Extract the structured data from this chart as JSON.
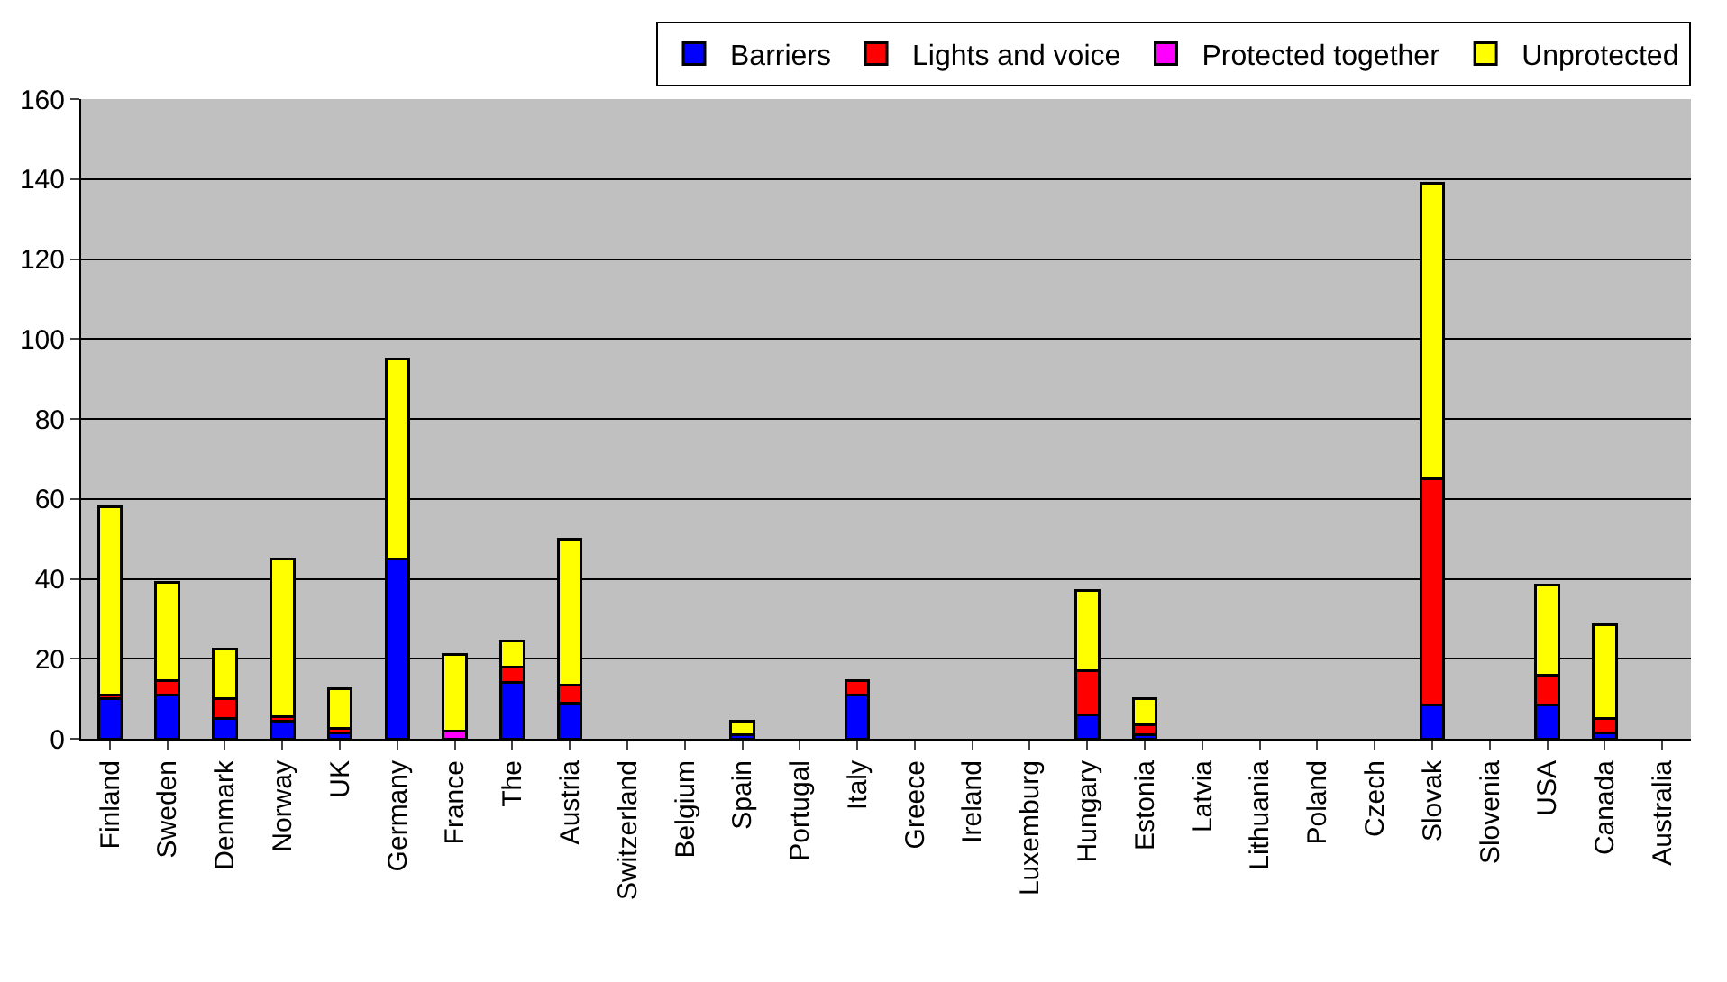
{
  "chart_data": {
    "type": "bar",
    "stacked": true,
    "categories": [
      "Finland",
      "Sweden",
      "Denmark",
      "Norway",
      "UK",
      "Germany",
      "France",
      "The",
      "Austria",
      "Switzerland",
      "Belgium",
      "Spain",
      "Portugal",
      "Italy",
      "Greece",
      "Ireland",
      "Luxemburg",
      "Hungary",
      "Estonia",
      "Latvia",
      "Lithuania",
      "Poland",
      "Czech",
      "Slovak",
      "Slovenia",
      "USA",
      "Canada",
      "Australia"
    ],
    "series": [
      {
        "name": "Barriers",
        "color": "#0000ff",
        "values": [
          10,
          11,
          5,
          4.5,
          1.5,
          45,
          null,
          14,
          9,
          null,
          null,
          1,
          null,
          11,
          null,
          null,
          null,
          6,
          1,
          null,
          null,
          null,
          null,
          8.5,
          null,
          8.5,
          1.5,
          null
        ]
      },
      {
        "name": "Lights and voice",
        "color": "#ff0000",
        "values": [
          1,
          3.5,
          5,
          1,
          1,
          null,
          null,
          4,
          4.5,
          null,
          null,
          null,
          null,
          3.5,
          null,
          null,
          null,
          11,
          2.5,
          null,
          null,
          null,
          null,
          56.5,
          null,
          7.5,
          3.5,
          null
        ]
      },
      {
        "name": "Protected together",
        "color": "#ff00ff",
        "values": [
          null,
          null,
          null,
          null,
          null,
          null,
          2,
          null,
          null,
          null,
          null,
          null,
          null,
          null,
          null,
          null,
          null,
          null,
          null,
          null,
          null,
          null,
          null,
          null,
          null,
          null,
          null,
          null
        ]
      },
      {
        "name": "Unprotected",
        "color": "#ffff00",
        "values": [
          47,
          24.5,
          12.5,
          39.5,
          10,
          50,
          19,
          6.5,
          36.5,
          null,
          null,
          3.5,
          null,
          null,
          null,
          null,
          null,
          20,
          6.5,
          null,
          null,
          null,
          null,
          74,
          null,
          22.5,
          23.5,
          null
        ]
      }
    ],
    "ylim": [
      0,
      160
    ],
    "yticks": [
      0,
      20,
      40,
      60,
      80,
      100,
      120,
      140,
      160
    ],
    "grid": "y",
    "legend": "top right"
  }
}
